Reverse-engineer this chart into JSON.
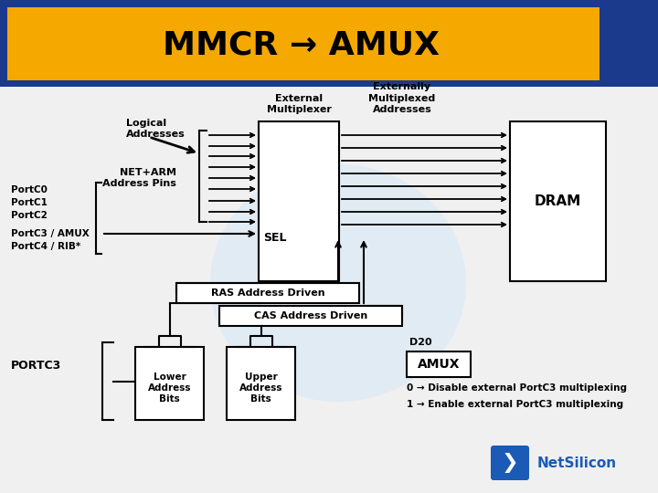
{
  "title": "MMCR → AMUX",
  "title_bg": "#F5A800",
  "title_color": "#000000",
  "bg_color": "#FFFFFF",
  "header_right_color": "#1B3A8C",
  "header_bg_color": "#1B3A8C",
  "labels": {
    "logical_addresses": "Logical\nAddresses",
    "external_multiplexer": "External\nMultiplexer",
    "externally_multiplexed": "Externally\nMultiplexed\nAddresses",
    "net_arm": "NET+ARM\nAddress Pins",
    "sel": "SEL",
    "ras": "RAS Address Driven",
    "cas": "CAS Address Driven",
    "dram": "DRAM",
    "portc3": "PORTC3",
    "port_list_0": "PortC0",
    "port_list_1": "PortC1",
    "port_list_2": "PortC2",
    "port_list_3": "PortC3 / AMUX",
    "port_list_4": "PortC4 / RIB*",
    "lower_addr": "Lower\nAddress\nBits",
    "upper_addr": "Upper\nAddress\nBits",
    "d20": "D20",
    "amux_box": "AMUX",
    "note0": "0 → Disable external PortC3 multiplexing",
    "note1": "1 → Enable external PortC3 multiplexing",
    "netsilicon": "NetSilicon"
  },
  "watermark_color": "#DAEAF5",
  "line_color": "#000000",
  "box_line_color": "#000000"
}
